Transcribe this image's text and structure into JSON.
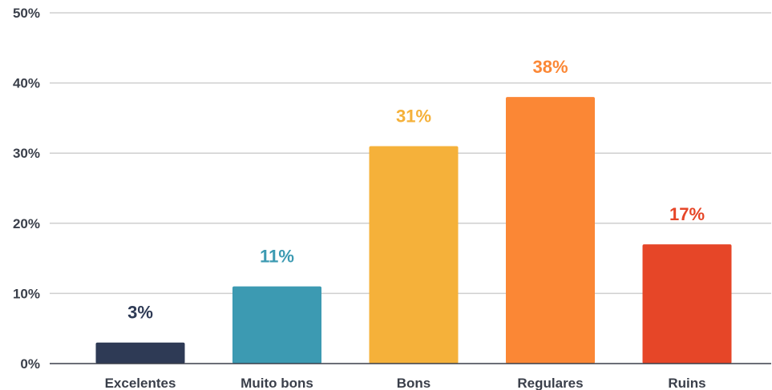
{
  "chart_data": {
    "type": "bar",
    "categories": [
      "Excelentes",
      "Muito bons",
      "Bons",
      "Regulares",
      "Ruins"
    ],
    "values": [
      3,
      11,
      31,
      38,
      17
    ],
    "data_labels": [
      "3%",
      "11%",
      "31%",
      "38%",
      "17%"
    ],
    "colors": [
      "#2e3a55",
      "#3c9ab2",
      "#f5b13a",
      "#fb8735",
      "#e64628"
    ],
    "ylim": [
      0,
      50
    ],
    "yticks": [
      0,
      10,
      20,
      30,
      40,
      50
    ],
    "ytick_labels": [
      "0%",
      "10%",
      "20%",
      "30%",
      "40%",
      "50%"
    ],
    "grid": true,
    "title": "",
    "xlabel": "",
    "ylabel": ""
  }
}
